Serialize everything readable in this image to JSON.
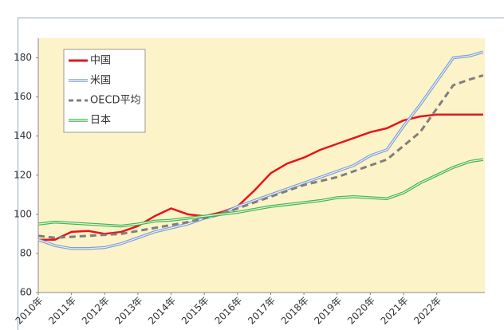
{
  "chart_data": {
    "type": "line",
    "x": [
      2010,
      2010.5,
      2011,
      2011.5,
      2012,
      2012.5,
      2013,
      2013.5,
      2014,
      2014.5,
      2015,
      2015.5,
      2016,
      2016.5,
      2017,
      2017.5,
      2018,
      2018.5,
      2019,
      2019.5,
      2020,
      2020.5,
      2021,
      2021.5,
      2022,
      2022.5,
      2023,
      2023.4
    ],
    "series": [
      {
        "name": "中国",
        "color": "#e8141b",
        "line_style": "solid",
        "values": [
          87,
          87,
          91,
          91.5,
          90,
          91,
          94,
          99,
          103,
          100,
          99,
          101,
          104,
          112,
          121,
          126,
          129,
          133,
          136,
          139,
          142,
          144,
          148,
          150,
          151,
          151,
          151,
          151
        ]
      },
      {
        "name": "米国",
        "color": "#7f9fd4",
        "line_style": "double",
        "values": [
          87,
          84,
          82.5,
          82.5,
          83,
          85,
          88,
          91,
          93,
          95,
          98,
          100,
          104,
          107,
          110,
          113,
          116,
          119,
          122,
          125,
          130,
          133,
          145,
          156,
          168,
          180,
          181,
          183
        ]
      },
      {
        "name": "OECD平均",
        "color": "#7f7f7f",
        "line_style": "dashed",
        "values": [
          89,
          88,
          88.5,
          89,
          89.5,
          90,
          91.5,
          93,
          94.5,
          96,
          98,
          100,
          103,
          106,
          109,
          112,
          115,
          117,
          119,
          122,
          125,
          128,
          135,
          142,
          154,
          166,
          169,
          171
        ]
      },
      {
        "name": "日本",
        "color": "#3fb54a",
        "line_style": "double",
        "values": [
          95,
          96,
          95.5,
          95,
          94.5,
          94,
          95,
          96.5,
          97,
          98,
          99,
          100,
          101,
          102.5,
          104,
          105,
          106,
          107,
          108.5,
          109,
          108.5,
          108,
          111,
          116,
          120,
          124,
          127,
          128
        ]
      }
    ],
    "xlim": [
      2010,
      2023.45
    ],
    "xticks": [
      {
        "value": 2010,
        "label": "2010年"
      },
      {
        "value": 2011,
        "label": "2011年"
      },
      {
        "value": 2012,
        "label": "2012年"
      },
      {
        "value": 2013,
        "label": "2013年"
      },
      {
        "value": 2014,
        "label": "2014年"
      },
      {
        "value": 2015,
        "label": "2015年"
      },
      {
        "value": 2016,
        "label": "2016年"
      },
      {
        "value": 2017,
        "label": "2017年"
      },
      {
        "value": 2018,
        "label": "2018年"
      },
      {
        "value": 2019,
        "label": "2019年"
      },
      {
        "value": 2020,
        "label": "2020年"
      },
      {
        "value": 2021,
        "label": "2021年"
      },
      {
        "value": 2022,
        "label": "2022年"
      }
    ],
    "ylim": [
      60,
      190
    ],
    "yticks": [
      60,
      80,
      100,
      120,
      140,
      160,
      180
    ],
    "grid": false,
    "legend": "upper left"
  }
}
